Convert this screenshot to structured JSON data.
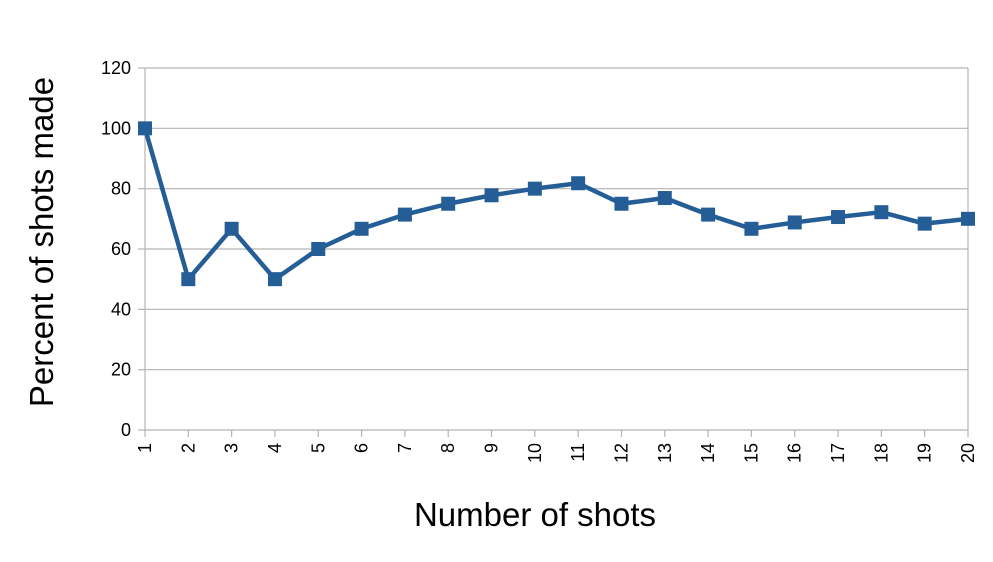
{
  "chart_data": {
    "type": "line",
    "xlabel": "Number of shots",
    "ylabel": "Percent of shots made",
    "x": [
      1,
      2,
      3,
      4,
      5,
      6,
      7,
      8,
      9,
      10,
      11,
      12,
      13,
      14,
      15,
      16,
      17,
      18,
      19,
      20
    ],
    "series": [
      {
        "values": [
          100,
          50,
          66.7,
          50,
          60,
          66.7,
          71.4,
          75,
          77.8,
          80,
          81.8,
          75,
          76.9,
          71.4,
          66.7,
          68.8,
          70.6,
          72.2,
          68.4,
          70
        ],
        "color": "#255e96",
        "marker": "square"
      }
    ],
    "ylim": [
      0,
      120
    ],
    "yticks": [
      0,
      20,
      40,
      60,
      80,
      100,
      120
    ],
    "grid": true,
    "legend": "none",
    "colors": {
      "line": "#255e96",
      "grid": "#b3b3b3",
      "text": "#000000"
    }
  }
}
